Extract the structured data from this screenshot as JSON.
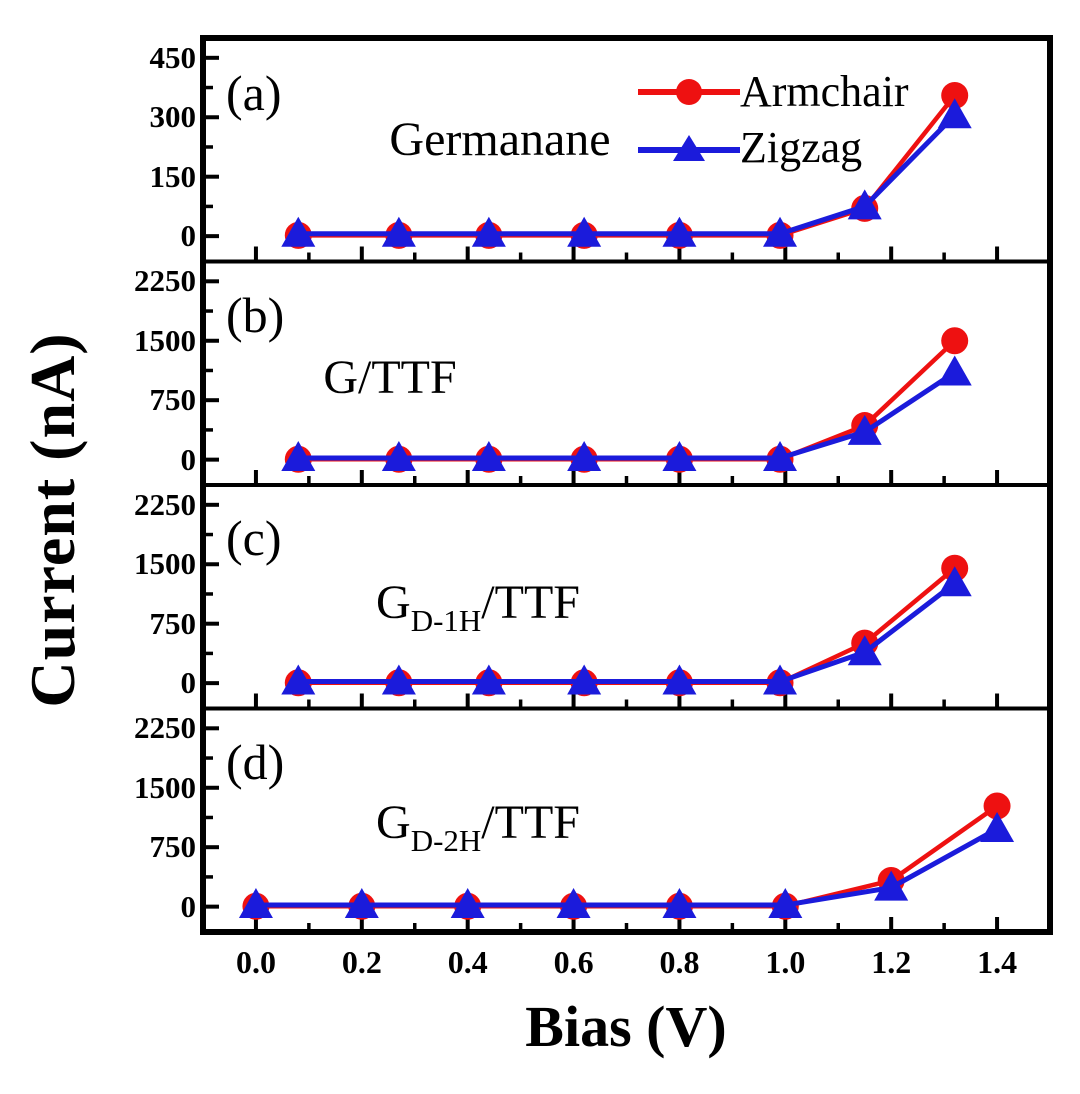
{
  "chart_data": {
    "type": "line",
    "title": "",
    "xlabel": "Bias (V)",
    "ylabel": "Current (nA)",
    "xlim": [
      -0.1,
      1.5
    ],
    "x_tick_labels": [
      "0.0",
      "0.2",
      "0.4",
      "0.6",
      "0.8",
      "1.0",
      "1.2",
      "1.4"
    ],
    "x_minor_ticks": [
      0.1,
      0.3,
      0.5,
      0.7,
      0.9,
      1.1,
      1.3
    ],
    "grid": false,
    "legend_position": "top-right of panel (a)",
    "series_style": [
      {
        "name": "Armchair",
        "color": "#ee1111",
        "marker": "circle"
      },
      {
        "name": "Zigzag",
        "color": "#1b1bdb",
        "marker": "triangle-up"
      }
    ],
    "panels": [
      {
        "label": "(a)",
        "title": {
          "main": "Germanane",
          "sub": "",
          "rest": ""
        },
        "ylim": [
          -64,
          500
        ],
        "y_ticks": [
          0,
          150,
          300,
          450
        ],
        "y_minor_ticks": [
          75,
          225,
          375
        ],
        "x": [
          0.08,
          0.27,
          0.44,
          0.62,
          0.8,
          0.99,
          1.15,
          1.32
        ],
        "series": [
          {
            "name": "Armchair",
            "values": [
              2,
              2,
              2,
              2,
              2,
              2,
              70,
              355
            ]
          },
          {
            "name": "Zigzag",
            "values": [
              6,
              6,
              6,
              6,
              6,
              6,
              75,
              305
            ]
          }
        ]
      },
      {
        "label": "(b)",
        "title": {
          "main": "G/TTF",
          "sub": "",
          "rest": ""
        },
        "ylim": [
          -320,
          2500
        ],
        "y_ticks": [
          0,
          750,
          1500,
          2250
        ],
        "y_minor_ticks": [
          375,
          1125,
          1875
        ],
        "x": [
          0.08,
          0.27,
          0.44,
          0.62,
          0.8,
          0.99,
          1.15,
          1.32
        ],
        "series": [
          {
            "name": "Armchair",
            "values": [
              5,
              5,
              5,
              5,
              5,
              5,
              430,
              1500
            ]
          },
          {
            "name": "Zigzag",
            "values": [
              20,
              20,
              20,
              20,
              20,
              20,
              350,
              1100
            ]
          }
        ]
      },
      {
        "label": "(c)",
        "title": {
          "main": "G",
          "sub": "D-1H",
          "rest": "/TTF"
        },
        "ylim": [
          -320,
          2500
        ],
        "y_ticks": [
          0,
          750,
          1500,
          2250
        ],
        "y_minor_ticks": [
          375,
          1125,
          1875
        ],
        "x": [
          0.08,
          0.27,
          0.44,
          0.62,
          0.8,
          0.99,
          1.15,
          1.32
        ],
        "series": [
          {
            "name": "Armchair",
            "values": [
              5,
              5,
              5,
              5,
              5,
              5,
              505,
              1450
            ]
          },
          {
            "name": "Zigzag",
            "values": [
              20,
              20,
              20,
              20,
              20,
              20,
              390,
              1260
            ]
          }
        ]
      },
      {
        "label": "(d)",
        "title": {
          "main": "G",
          "sub": "D-2H",
          "rest": "/TTF"
        },
        "ylim": [
          -320,
          2500
        ],
        "y_ticks": [
          0,
          750,
          1500,
          2250
        ],
        "y_minor_ticks": [
          375,
          1125,
          1875
        ],
        "x": [
          0.0,
          0.2,
          0.4,
          0.6,
          0.8,
          1.0,
          1.2,
          1.4
        ],
        "series": [
          {
            "name": "Armchair",
            "values": [
              5,
              5,
              5,
              5,
              5,
              5,
              330,
              1270
            ]
          },
          {
            "name": "Zigzag",
            "values": [
              20,
              20,
              20,
              20,
              20,
              20,
              240,
              980
            ]
          }
        ]
      }
    ]
  }
}
